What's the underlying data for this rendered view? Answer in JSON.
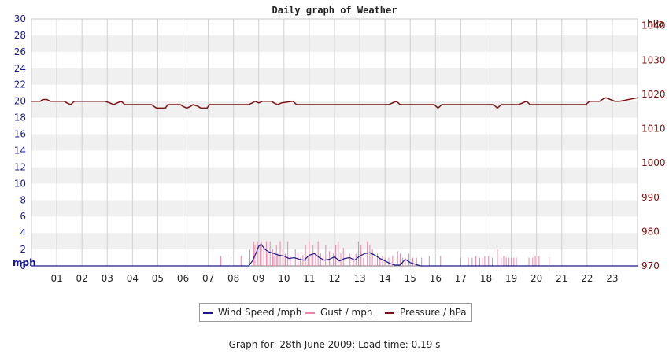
{
  "chart_data": {
    "type": "line",
    "title": "Daily graph of Weather",
    "left_axis": {
      "unit_label": "mph",
      "range": [
        0,
        30
      ],
      "ticks": [
        "0",
        "2",
        "4",
        "6",
        "8",
        "10",
        "12",
        "14",
        "16",
        "18",
        "20",
        "22",
        "24",
        "26",
        "28",
        "30"
      ]
    },
    "right_axis": {
      "unit_label": "hPa",
      "range": [
        970,
        1042
      ],
      "ticks": [
        "970",
        "980",
        "990",
        "1000",
        "1010",
        "1020",
        "1030",
        "1040"
      ]
    },
    "x_ticks": [
      "01",
      "02",
      "03",
      "04",
      "05",
      "06",
      "07",
      "08",
      "09",
      "10",
      "11",
      "12",
      "13",
      "14",
      "15",
      "16",
      "17",
      "18",
      "19",
      "20",
      "21",
      "22",
      "23"
    ],
    "x_range": [
      0,
      24
    ],
    "grid": true,
    "legend_position": "bottom",
    "series": [
      {
        "name": "Wind Speed /mph",
        "color": "#1a1a8c",
        "axis": "left",
        "x": [
          0,
          8.6,
          8.75,
          8.9,
          9.0,
          9.1,
          9.25,
          9.4,
          9.6,
          9.8,
          10.0,
          10.2,
          10.4,
          10.6,
          10.8,
          11.0,
          11.2,
          11.4,
          11.6,
          11.8,
          12.0,
          12.2,
          12.4,
          12.6,
          12.8,
          13.0,
          13.2,
          13.4,
          13.6,
          13.8,
          14.0,
          14.2,
          14.4,
          14.6,
          14.8,
          15.0,
          15.2,
          15.4,
          24
        ],
        "y": [
          0,
          0,
          0.6,
          1.6,
          2.4,
          2.6,
          2.0,
          1.7,
          1.5,
          1.3,
          1.2,
          0.9,
          1.0,
          0.8,
          0.7,
          1.3,
          1.5,
          1.0,
          0.7,
          0.8,
          1.1,
          0.6,
          0.9,
          1.0,
          0.7,
          1.2,
          1.5,
          1.6,
          1.3,
          0.9,
          0.6,
          0.3,
          0.1,
          0.1,
          0.8,
          0.4,
          0.2,
          0,
          0
        ]
      },
      {
        "name": "Gust / mph",
        "color": "#ee82a8",
        "axis": "left",
        "gusts": [
          [
            7.5,
            1.2
          ],
          [
            7.9,
            1.0
          ],
          [
            8.3,
            1.2
          ],
          [
            8.65,
            2.0
          ],
          [
            8.8,
            3.0
          ],
          [
            8.85,
            2.5
          ],
          [
            8.95,
            3.0
          ],
          [
            9.05,
            2.7
          ],
          [
            9.1,
            3.0
          ],
          [
            9.2,
            2.2
          ],
          [
            9.3,
            3.0
          ],
          [
            9.35,
            1.6
          ],
          [
            9.45,
            3.0
          ],
          [
            9.55,
            2.0
          ],
          [
            9.6,
            1.3
          ],
          [
            9.7,
            2.5
          ],
          [
            9.75,
            1.5
          ],
          [
            9.85,
            3.0
          ],
          [
            9.95,
            2.0
          ],
          [
            10.05,
            1.5
          ],
          [
            10.15,
            3.0
          ],
          [
            10.25,
            1.2
          ],
          [
            10.45,
            2.0
          ],
          [
            10.55,
            1.5
          ],
          [
            10.65,
            1.0
          ],
          [
            10.75,
            1.3
          ],
          [
            10.85,
            2.5
          ],
          [
            10.95,
            1.0
          ],
          [
            11.0,
            3.0
          ],
          [
            11.1,
            1.5
          ],
          [
            11.15,
            2.5
          ],
          [
            11.25,
            1.5
          ],
          [
            11.35,
            3.0
          ],
          [
            11.45,
            1.5
          ],
          [
            11.55,
            1.2
          ],
          [
            11.65,
            2.5
          ],
          [
            11.8,
            1.8
          ],
          [
            11.95,
            1.5
          ],
          [
            12.05,
            2.5
          ],
          [
            12.15,
            3.0
          ],
          [
            12.25,
            1.5
          ],
          [
            12.35,
            2.2
          ],
          [
            12.45,
            1.0
          ],
          [
            12.6,
            1.5
          ],
          [
            12.75,
            1.0
          ],
          [
            12.85,
            1.5
          ],
          [
            12.95,
            3.0
          ],
          [
            13.05,
            2.5
          ],
          [
            13.15,
            1.0
          ],
          [
            13.3,
            3.0
          ],
          [
            13.4,
            2.5
          ],
          [
            13.5,
            2.0
          ],
          [
            13.6,
            1.0
          ],
          [
            13.7,
            1.5
          ],
          [
            13.8,
            1.0
          ],
          [
            13.9,
            1.2
          ],
          [
            14.0,
            1.0
          ],
          [
            14.15,
            1.0
          ],
          [
            14.3,
            1.2
          ],
          [
            14.5,
            1.8
          ],
          [
            14.6,
            1.5
          ],
          [
            14.7,
            1.0
          ],
          [
            14.8,
            1.0
          ],
          [
            14.95,
            1.5
          ],
          [
            15.1,
            1.0
          ],
          [
            15.25,
            1.0
          ],
          [
            15.45,
            1.0
          ],
          [
            15.75,
            1.2
          ],
          [
            16.2,
            1.2
          ],
          [
            17.0,
            1.0
          ],
          [
            17.3,
            1.0
          ],
          [
            17.45,
            1.0
          ],
          [
            17.6,
            1.2
          ],
          [
            17.75,
            1.0
          ],
          [
            17.85,
            1.0
          ],
          [
            17.95,
            1.2
          ],
          [
            18.1,
            1.2
          ],
          [
            18.25,
            1.0
          ],
          [
            18.45,
            2.0
          ],
          [
            18.6,
            1.0
          ],
          [
            18.7,
            1.2
          ],
          [
            18.8,
            1.0
          ],
          [
            18.9,
            1.0
          ],
          [
            19.0,
            1.0
          ],
          [
            19.1,
            1.0
          ],
          [
            19.2,
            1.0
          ],
          [
            19.7,
            1.0
          ],
          [
            19.85,
            1.0
          ],
          [
            19.95,
            1.2
          ],
          [
            20.1,
            1.2
          ],
          [
            20.5,
            1.0
          ]
        ]
      },
      {
        "name": "Pressure / hPa",
        "color": "#7a1010",
        "axis": "right",
        "x": [
          0,
          0.35,
          0.45,
          0.6,
          0.75,
          1.3,
          1.4,
          1.55,
          1.7,
          2.9,
          3.1,
          3.25,
          3.4,
          3.55,
          3.7,
          4.75,
          4.95,
          5.3,
          5.4,
          5.9,
          6.0,
          6.15,
          6.3,
          6.4,
          6.6,
          6.7,
          6.95,
          7.05,
          8.6,
          8.75,
          8.85,
          9.0,
          9.15,
          9.5,
          9.6,
          9.75,
          9.9,
          10.35,
          10.5,
          14.15,
          14.3,
          14.45,
          14.6,
          15.95,
          16.1,
          16.25,
          18.3,
          18.45,
          18.6,
          19.3,
          19.45,
          19.6,
          19.75,
          21.95,
          22.1,
          22.5,
          22.6,
          22.75,
          23.1,
          23.3,
          24
        ],
        "y": [
          1018,
          1018,
          1018.5,
          1018.5,
          1018,
          1018,
          1017.5,
          1017,
          1018,
          1018,
          1017.5,
          1017,
          1017.5,
          1018,
          1017,
          1017,
          1016,
          1016,
          1017,
          1017,
          1016.5,
          1016,
          1016.5,
          1017,
          1016.5,
          1016,
          1016,
          1017,
          1017,
          1017.5,
          1018,
          1017.5,
          1018,
          1018,
          1017.5,
          1017,
          1017.5,
          1018,
          1017,
          1017,
          1017.5,
          1018,
          1017,
          1017,
          1016,
          1017,
          1017,
          1016,
          1017,
          1017,
          1017.5,
          1018,
          1017,
          1017,
          1018,
          1018,
          1018.5,
          1019,
          1018,
          1018,
          1019
        ]
      }
    ]
  },
  "footer": "Graph for: 28th June 2009; Load time: 0.19 s"
}
